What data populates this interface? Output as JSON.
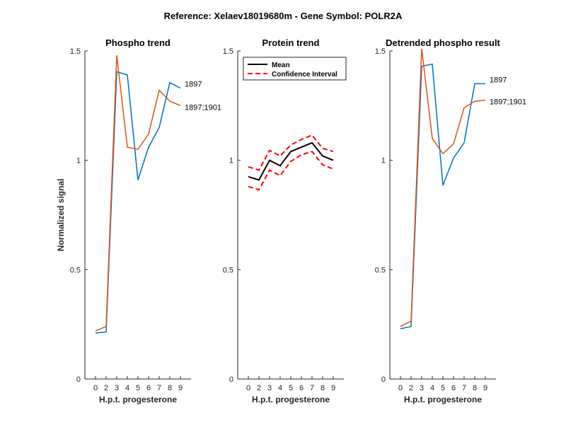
{
  "figure": {
    "title": "Reference:  Xelaev18019680m - Gene Symbol:  POLR2A",
    "ylabel": "Normalized signal"
  },
  "chart_data": [
    {
      "type": "line",
      "title": "Phospho trend",
      "xlabel": "H.p.t. progesterone",
      "ylabel": "Normalized signal",
      "xticks": [
        "0",
        "2",
        "3",
        "4",
        "5",
        "6",
        "7",
        "8",
        "9"
      ],
      "yticks": [
        "0",
        "0.5",
        "1",
        "1.5"
      ],
      "ylim": [
        0,
        1.5
      ],
      "grid": false,
      "series": [
        {
          "name": "1897",
          "color": "#0072BD",
          "values": [
            0.21,
            0.215,
            1.405,
            1.39,
            0.91,
            1.06,
            1.15,
            1.355,
            1.33
          ]
        },
        {
          "name": "1897;1901",
          "color": "#D95319",
          "values": [
            0.22,
            0.24,
            1.48,
            1.06,
            1.05,
            1.12,
            1.32,
            1.27,
            1.25
          ]
        }
      ]
    },
    {
      "type": "line",
      "title": "Protein trend",
      "xlabel": "H.p.t. progesterone",
      "xticks": [
        "0",
        "2",
        "3",
        "4",
        "5",
        "6",
        "7",
        "8",
        "9"
      ],
      "yticks": [
        "0",
        "0.5",
        "1",
        "1.5"
      ],
      "ylim": [
        0,
        1.5
      ],
      "grid": false,
      "legend": {
        "position": "top-left",
        "entries": [
          "Mean",
          "Confidence Interval"
        ]
      },
      "series": [
        {
          "name": "Mean",
          "color": "#000000",
          "style": "solid",
          "values": [
            0.925,
            0.91,
            1.0,
            0.975,
            1.04,
            1.06,
            1.08,
            1.02,
            1.0
          ]
        },
        {
          "name": "Confidence Interval",
          "color": "#FF0000",
          "style": "dashed",
          "values": [
            0.97,
            0.955,
            1.045,
            1.02,
            1.07,
            1.095,
            1.115,
            1.055,
            1.04
          ]
        },
        {
          "name": "Confidence Interval",
          "color": "#FF0000",
          "style": "dashed",
          "values": [
            0.88,
            0.865,
            0.955,
            0.93,
            0.995,
            1.025,
            1.04,
            0.98,
            0.96
          ]
        }
      ]
    },
    {
      "type": "line",
      "title": "Detrended phospho result",
      "xlabel": "H.p.t. progesterone",
      "xticks": [
        "0",
        "2",
        "3",
        "4",
        "5",
        "6",
        "7",
        "8",
        "9"
      ],
      "yticks": [
        "0",
        "0.5",
        "1",
        "1.5"
      ],
      "ylim": [
        0,
        1.5
      ],
      "grid": false,
      "series": [
        {
          "name": "1897",
          "color": "#0072BD",
          "values": [
            0.23,
            0.24,
            1.43,
            1.44,
            0.885,
            1.01,
            1.08,
            1.35,
            1.35
          ]
        },
        {
          "name": "1897;1901",
          "color": "#D95319",
          "values": [
            0.24,
            0.265,
            1.51,
            1.1,
            1.03,
            1.075,
            1.24,
            1.27,
            1.275
          ]
        }
      ]
    }
  ]
}
